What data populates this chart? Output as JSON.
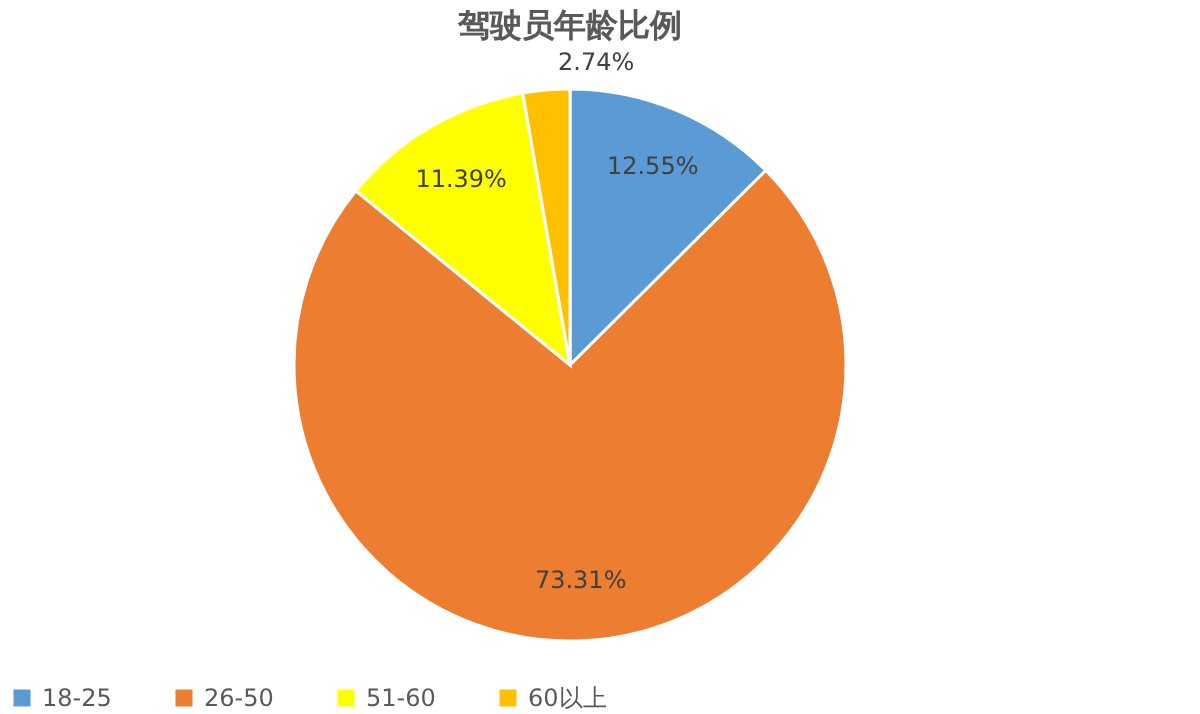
{
  "chart_data": {
    "type": "pie",
    "title": "驾驶员年龄比例",
    "categories": [
      "18-25",
      "26-50",
      "51-60",
      "60以上"
    ],
    "values": [
      12.55,
      73.31,
      11.39,
      2.74
    ],
    "colors": [
      "#5b9bd5",
      "#ed7d31",
      "#ffff00",
      "#ffc000"
    ],
    "value_labels": [
      "12.55%",
      "73.31%",
      "11.39%",
      "2.74%"
    ],
    "legend": "bottom"
  }
}
